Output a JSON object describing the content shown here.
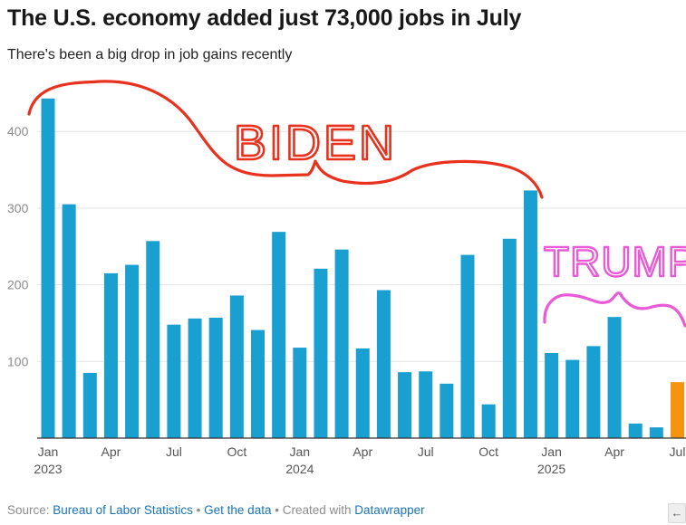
{
  "header": {
    "title": "The U.S. economy added just 73,000 jobs in July",
    "subtitle": "There's been a big drop in job gains recently"
  },
  "chart_data": {
    "type": "bar",
    "title": "The U.S. economy added just 73,000 jobs in July",
    "subtitle": "There's been a big drop in job gains recently",
    "xlabel": "",
    "ylabel": "",
    "ylim": [
      0,
      460
    ],
    "yticks": [
      100,
      200,
      300,
      400
    ],
    "grid": true,
    "categories": [
      "Jan 2023",
      "Feb 2023",
      "Mar 2023",
      "Apr 2023",
      "May 2023",
      "Jun 2023",
      "Jul 2023",
      "Aug 2023",
      "Sep 2023",
      "Oct 2023",
      "Nov 2023",
      "Dec 2023",
      "Jan 2024",
      "Feb 2024",
      "Mar 2024",
      "Apr 2024",
      "May 2024",
      "Jun 2024",
      "Jul 2024",
      "Aug 2024",
      "Sep 2024",
      "Oct 2024",
      "Nov 2024",
      "Dec 2024",
      "Jan 2025",
      "Feb 2025",
      "Mar 2025",
      "Apr 2025",
      "May 2025",
      "Jun 2025",
      "Jul 2025"
    ],
    "values": [
      443,
      305,
      85,
      215,
      226,
      257,
      148,
      156,
      157,
      186,
      141,
      269,
      118,
      221,
      246,
      117,
      193,
      86,
      87,
      71,
      239,
      44,
      260,
      323,
      111,
      102,
      120,
      158,
      19,
      14,
      73
    ],
    "highlight_index": 30,
    "colors": {
      "bar": "#1a9fd1",
      "highlight": "#f7940f",
      "grid": "#e3e3e3",
      "axis": "#333333"
    },
    "x_tick_labels": [
      {
        "index": 0,
        "label": "Jan",
        "year": "2023"
      },
      {
        "index": 3,
        "label": "Apr",
        "year": ""
      },
      {
        "index": 6,
        "label": "Jul",
        "year": ""
      },
      {
        "index": 9,
        "label": "Oct",
        "year": ""
      },
      {
        "index": 12,
        "label": "Jan",
        "year": "2024"
      },
      {
        "index": 15,
        "label": "Apr",
        "year": ""
      },
      {
        "index": 18,
        "label": "Jul",
        "year": ""
      },
      {
        "index": 21,
        "label": "Oct",
        "year": ""
      },
      {
        "index": 24,
        "label": "Jan",
        "year": "2025"
      },
      {
        "index": 27,
        "label": "Apr",
        "year": ""
      },
      {
        "index": 30,
        "label": "Jul",
        "year": ""
      }
    ],
    "annotations": [
      {
        "text": "BIDEN",
        "color": "#e8321e",
        "style": "handwritten"
      },
      {
        "text": "TRUMP",
        "color": "#e85ad6",
        "style": "handwritten"
      }
    ]
  },
  "footer": {
    "source_prefix": "Source:",
    "source_link": "Bureau of Labor Statistics",
    "separator": "•",
    "get_data": "Get the data",
    "created_with": "Created with",
    "datawrapper": "Datawrapper",
    "nav_icon": "arrow-left-icon"
  }
}
